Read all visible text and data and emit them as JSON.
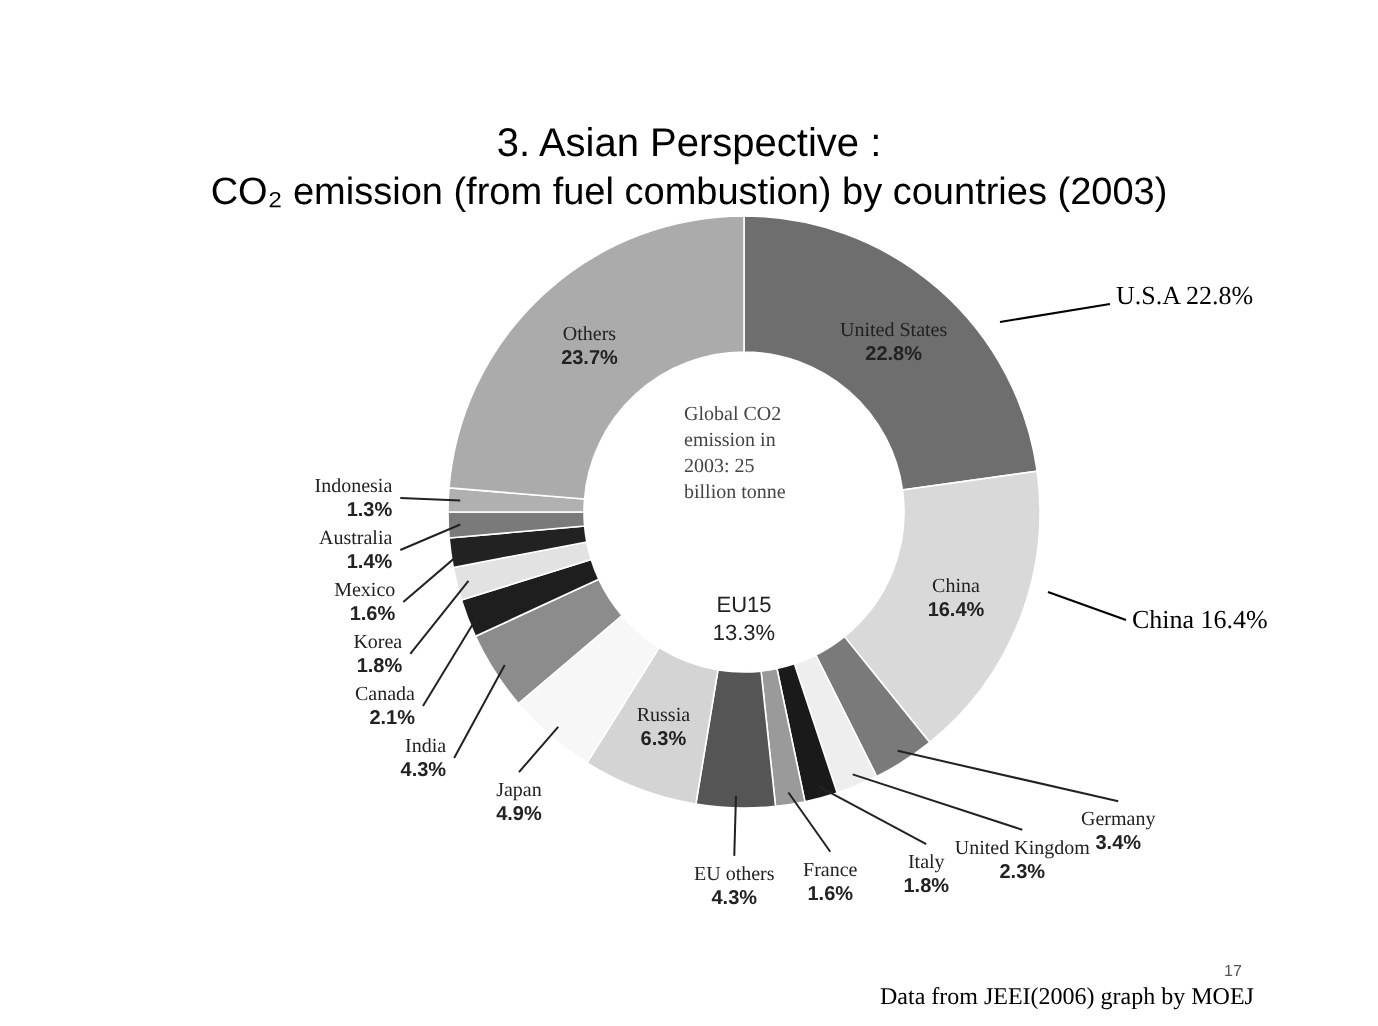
{
  "chart_data": {
    "type": "donut",
    "title": "3. Asian Perspective :",
    "subtitle": "CO₂ emission (from fuel combustion) by countries (2003)",
    "categories": [
      "United States",
      "China",
      "Germany",
      "United Kingdom",
      "Italy",
      "France",
      "EU others",
      "Russia",
      "Japan",
      "India",
      "Canada",
      "Korea",
      "Mexico",
      "Australia",
      "Indonesia",
      "Others"
    ],
    "values": [
      22.8,
      16.4,
      3.4,
      2.3,
      1.8,
      1.6,
      4.3,
      6.3,
      4.9,
      4.3,
      2.1,
      1.8,
      1.6,
      1.4,
      1.3,
      23.7
    ],
    "value_labels": [
      "22.8%",
      "16.4%",
      "3.4%",
      "2.3%",
      "1.8%",
      "1.6%",
      "4.3%",
      "6.3%",
      "4.9%",
      "4.3%",
      "2.1%",
      "1.8%",
      "1.6%",
      "1.4%",
      "1.3%",
      "23.7%"
    ],
    "colors": [
      "#6e6e6e",
      "#d9d9d9",
      "#7a7a7a",
      "#eeeeee",
      "#1a1a1a",
      "#9a9a9a",
      "#555555",
      "#d4d4d4",
      "#f7f7f7",
      "#8c8c8c",
      "#1e1e1e",
      "#e2e2e2",
      "#222222",
      "#7a7a7a",
      "#b0b0b0",
      "#ababab"
    ],
    "annotations": [
      "Global CO2 emission in 2003: 25 billion tonne",
      "EU15 13.3%",
      "U.S.A 22.8%",
      "China 16.4%",
      "Data from JEEI(2006) graph by MOEJ",
      "17"
    ],
    "data_labels": true
  }
}
